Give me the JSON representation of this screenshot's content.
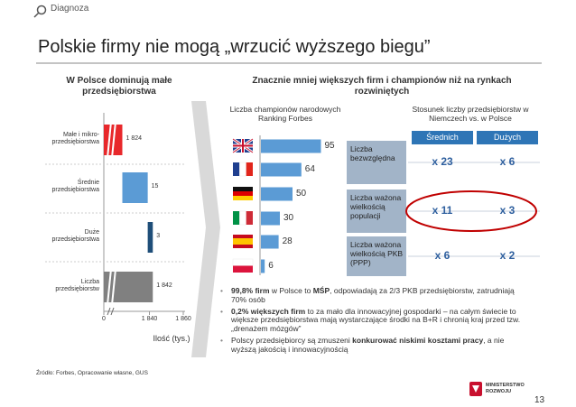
{
  "header": {
    "section": "Diagnoza",
    "title": "Polskie firmy nie mogą „wrzucić wyższego biegu”"
  },
  "left_heading": "W Polsce dominują małe przedsiębiorstwa",
  "right_heading": "Znacznie mniej większych firm i championów niż na rynkach rozwiniętych",
  "chart_data": [
    {
      "type": "waterfall",
      "orientation": "horizontal",
      "categories": [
        "Małe i mikro-przedsiębiorstwa",
        "Średnie przedsiębiorstwa",
        "Duże przedsiębiorstwa",
        "Liczba przedsiębiorstw"
      ],
      "values": [
        1824,
        15,
        3,
        1842
      ],
      "value_labels": [
        "1 824",
        "15",
        "3",
        "1 842"
      ],
      "colors": [
        "#e8282b",
        "#5b9bd5",
        "#1f4e79",
        "#808080"
      ],
      "total_index": 3,
      "xlabel": "Ilość (tys.)",
      "xlim": [
        0,
        1860
      ],
      "axis_break": [
        0,
        1820
      ],
      "xticks": [
        0,
        {
          "value": 1840,
          "label": "1 840"
        },
        {
          "value": 1860,
          "label": "1 860"
        }
      ]
    },
    {
      "type": "bar",
      "orientation": "horizontal",
      "title": "Liczba championów narodowych Ranking Forbes",
      "categories": [
        null,
        null,
        null,
        null,
        null,
        null
      ],
      "values": [
        95,
        64,
        50,
        30,
        28,
        6
      ],
      "color": "#5b9bd5"
    }
  ],
  "table": {
    "title": "Stosunek liczby przedsiębiorstw w Niemczech vs. w Polsce",
    "columns": [
      "Średnich",
      "Dużych"
    ],
    "rows": [
      {
        "label": "Liczba bezwzględna",
        "values": [
          "x 23",
          "x 6"
        ]
      },
      {
        "label": "Liczba ważona wielkością populacji",
        "values": [
          "x 11",
          "x 3"
        ]
      },
      {
        "label": "Liczba ważona wielkością PKB (PPP)",
        "values": [
          "x 6",
          "x 2"
        ]
      }
    ]
  },
  "bullets": [
    [
      {
        "text": "99,8% firm",
        "bold": true
      },
      {
        "text": " w Polsce to ",
        "bold": false
      },
      {
        "text": "MŚP",
        "bold": true
      },
      {
        "text": ", odpowiadają za 2/3 PKB przedsiębiorstw, zatrudniają 70% osób",
        "bold": false
      }
    ],
    [
      {
        "text": "0,2% większych firm",
        "bold": true
      },
      {
        "text": " to za mało dla innowacyjnej gospodarki – na całym świecie to większe przedsiębiorstwa mają wystarczające środki na B+R i chronią kraj przed tzw. „drenażem mózgów”",
        "bold": false
      }
    ],
    [
      {
        "text": "Polscy przedsiębiorcy są zmuszeni ",
        "bold": false
      },
      {
        "text": "konkurować niskimi kosztami pracy",
        "bold": true
      },
      {
        "text": ", a nie wyższą jakością i innowacyjnością",
        "bold": false
      }
    ]
  ],
  "source": "Źródło: Forbes, Opracowanie własne, GUS",
  "logo": "MINISTERSTWO ROZWOJU",
  "page": "13"
}
